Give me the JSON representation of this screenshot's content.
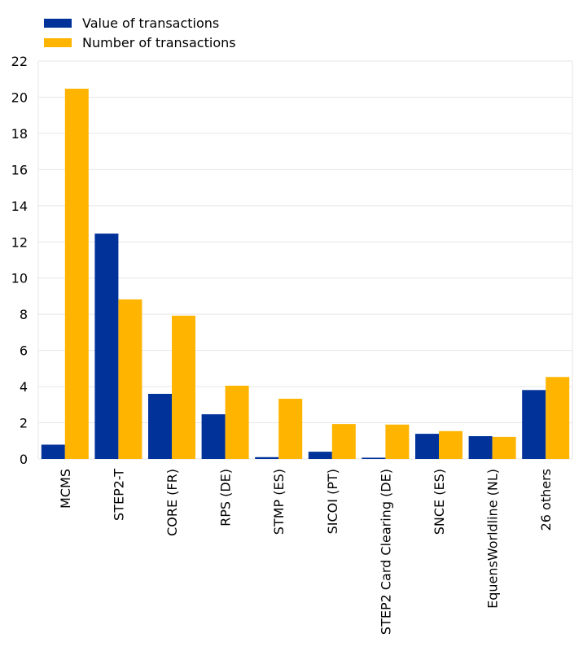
{
  "chart_data": {
    "type": "bar",
    "title": "",
    "xlabel": "",
    "ylabel": "",
    "ylim": [
      0,
      22
    ],
    "yticks": [
      0,
      2,
      4,
      6,
      8,
      10,
      12,
      14,
      16,
      18,
      20,
      22
    ],
    "grid": true,
    "legend_position": "top-left",
    "categories": [
      "MCMS",
      "STEP2-T",
      "CORE (FR)",
      "RPS (DE)",
      "STMP (ES)",
      "SICOI (PT)",
      "STEP2 Card Clearing (DE)",
      "SNCE (ES)",
      "EquensWorldline (NL)",
      "26 others"
    ],
    "series": [
      {
        "name": "Value of transactions",
        "color": "#003299",
        "values": [
          0.79,
          12.46,
          3.6,
          2.47,
          0.1,
          0.4,
          0.07,
          1.39,
          1.26,
          3.81
        ]
      },
      {
        "name": "Number of transactions",
        "color": "#FFB400",
        "values": [
          20.47,
          8.82,
          7.92,
          4.05,
          3.33,
          1.93,
          1.9,
          1.54,
          1.22,
          4.53
        ]
      }
    ]
  }
}
